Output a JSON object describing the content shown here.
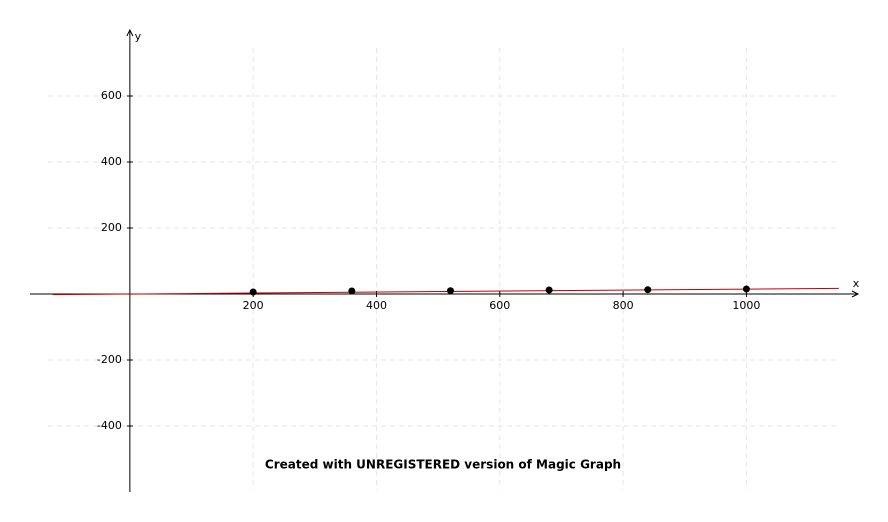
{
  "chart_data": {
    "type": "scatter",
    "xlabel": "x",
    "ylabel": "y",
    "annotation": "Created with UNREGISTERED version of Magic Graph",
    "xlim": [
      -162,
      1181
    ],
    "ylim": [
      -600,
      800
    ],
    "xticks": [
      200,
      400,
      600,
      800,
      1000
    ],
    "yticks": [
      -400,
      -200,
      200,
      400,
      600
    ],
    "grid": true,
    "series": [
      {
        "style": "line",
        "color": "#c00000",
        "x": [
          -125,
          1150
        ],
        "values": [
          -2,
          17
        ]
      },
      {
        "style": "markers",
        "color": "#000000",
        "x": [
          200,
          360,
          520,
          680,
          840,
          1000
        ],
        "values": [
          6,
          9,
          10,
          12,
          13,
          15
        ]
      }
    ]
  }
}
